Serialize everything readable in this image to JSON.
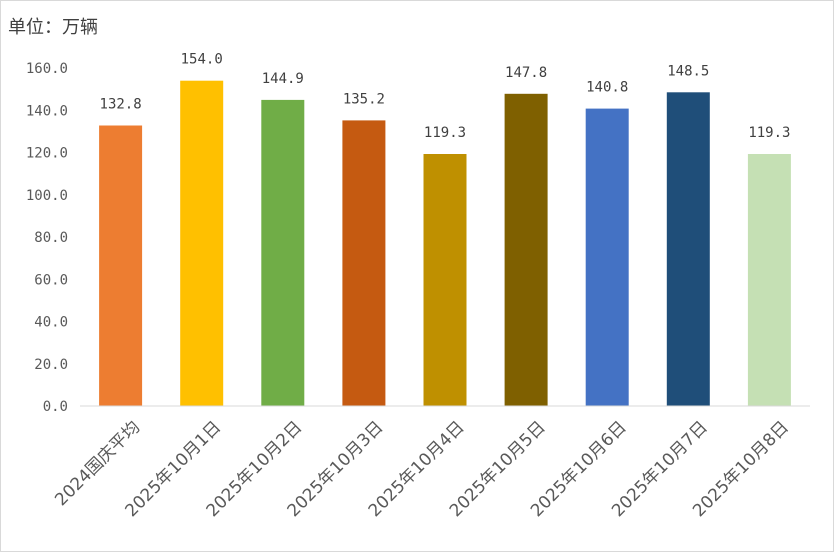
{
  "chart_data": {
    "type": "bar",
    "unit_label": "单位：万辆",
    "categories": [
      "2024国庆平均",
      "2025年10月1日",
      "2025年10月2日",
      "2025年10月3日",
      "2025年10月4日",
      "2025年10月5日",
      "2025年10月6日",
      "2025年10月7日",
      "2025年10月8日"
    ],
    "values": [
      132.8,
      154.0,
      144.9,
      135.2,
      119.3,
      147.8,
      140.8,
      148.5,
      119.3
    ],
    "value_labels": [
      "132.8",
      "154.0",
      "144.9",
      "135.2",
      "119.3",
      "147.8",
      "140.8",
      "148.5",
      "119.3"
    ],
    "colors": [
      "#ED7D31",
      "#FFC000",
      "#70AD47",
      "#C55A11",
      "#BF9000",
      "#7F6000",
      "#4472C4",
      "#1F4E79",
      "#C5E0B4"
    ],
    "ylim": [
      0,
      160
    ],
    "yticks": [
      0,
      20,
      40,
      60,
      80,
      100,
      120,
      140,
      160
    ],
    "ytick_labels": [
      "0.0",
      "20.0",
      "40.0",
      "60.0",
      "80.0",
      "100.0",
      "120.0",
      "140.0",
      "160.0"
    ],
    "grid": false,
    "legend": "none"
  }
}
